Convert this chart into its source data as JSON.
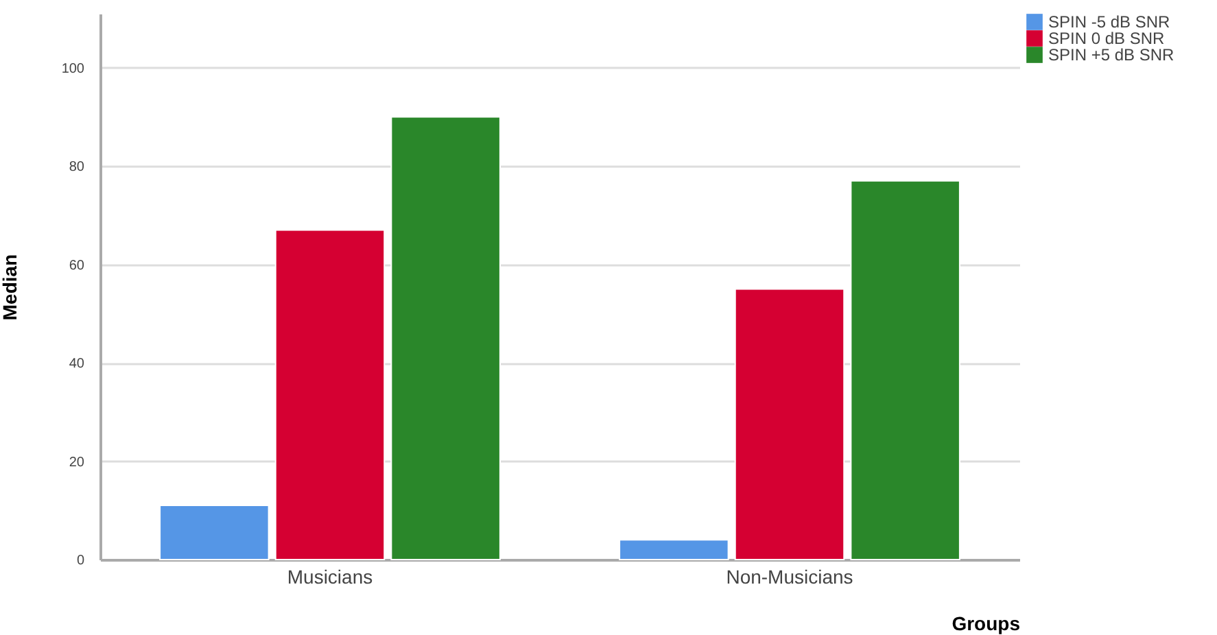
{
  "chart_data": {
    "type": "bar",
    "xlabel": "Groups",
    "ylabel": "Median",
    "categories": [
      "Musicians",
      "Non-Musicians"
    ],
    "series": [
      {
        "name": "SPIN -5 dB SNR",
        "color": "#5596e6",
        "values": [
          11,
          4
        ]
      },
      {
        "name": "SPIN 0 dB SNR",
        "color": "#d50032",
        "values": [
          67,
          55
        ]
      },
      {
        "name": "SPIN +5 dB SNR",
        "color": "#2a872a",
        "values": [
          90,
          77
        ]
      }
    ],
    "ylim": [
      0,
      111
    ],
    "yticks": [
      0,
      20,
      40,
      60,
      80,
      100
    ],
    "grid": "y",
    "legend": "top right"
  }
}
